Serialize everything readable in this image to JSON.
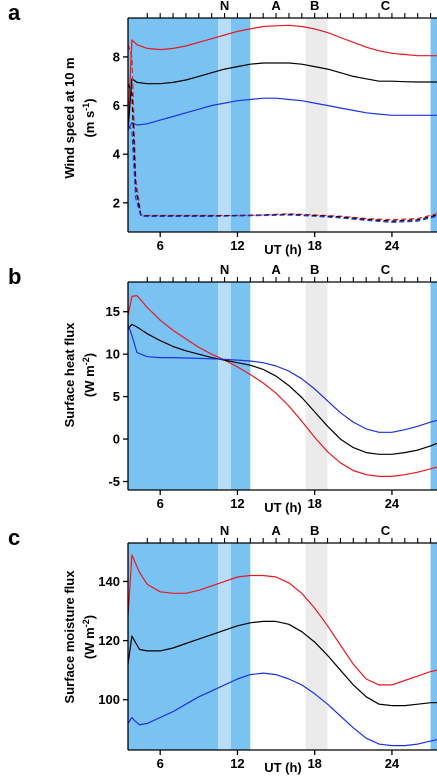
{
  "chart_data": [
    {
      "type": "line",
      "panel_label": "a",
      "ylabel": "Wind speed at 10 m",
      "yunit_prefix": "(m s",
      "yunit_exp": "-1",
      "yunit_suffix": ")",
      "xlabel": "UT (h)",
      "xlim": [
        3.5,
        27.5
      ],
      "ylim": [
        0.8,
        9.6
      ],
      "xticks": [
        6,
        12,
        18,
        24
      ],
      "yticks": [
        2,
        4,
        6,
        8
      ],
      "shading": [
        {
          "x0": 3.5,
          "x1": 10.5,
          "color": "#79c2f2"
        },
        {
          "x0": 10.5,
          "x1": 11.5,
          "color": "#b7ddf8"
        },
        {
          "x0": 11.5,
          "x1": 13.0,
          "color": "#79c2f2"
        },
        {
          "x0": 17.3,
          "x1": 19.0,
          "color": "#ebebeb"
        },
        {
          "x0": 27.0,
          "x1": 27.5,
          "color": "#79c2f2"
        }
      ],
      "event_marks": [
        {
          "label": "N",
          "x": 11.0
        },
        {
          "label": "A",
          "x": 15.0
        },
        {
          "label": "B",
          "x": 18.0
        },
        {
          "label": "C",
          "x": 23.5
        }
      ],
      "top_ticks": [
        5,
        6,
        7,
        8,
        9,
        10,
        11,
        12,
        13,
        14,
        15,
        16,
        17,
        18,
        19,
        20,
        21,
        22,
        23,
        24,
        25,
        26,
        27
      ],
      "series": [
        {
          "color": "#e8191f",
          "dash": "",
          "x": [
            3.5,
            3.8,
            4.2,
            5,
            6,
            7,
            8,
            9,
            10,
            11,
            12,
            13,
            14,
            15,
            16,
            17,
            18,
            19,
            20,
            21,
            22,
            23,
            24,
            25,
            26,
            27,
            27.5
          ],
          "y": [
            5.2,
            8.7,
            8.5,
            8.35,
            8.3,
            8.35,
            8.45,
            8.6,
            8.75,
            8.9,
            9.05,
            9.15,
            9.25,
            9.28,
            9.3,
            9.25,
            9.15,
            9.0,
            8.8,
            8.6,
            8.4,
            8.25,
            8.15,
            8.1,
            8.05,
            8.05,
            8.05
          ]
        },
        {
          "color": "#000000",
          "dash": "",
          "x": [
            3.5,
            3.8,
            4.2,
            5,
            6,
            7,
            8,
            9,
            10,
            11,
            12,
            13,
            14,
            15,
            16,
            17,
            18,
            19,
            20,
            21,
            22,
            23,
            24,
            25,
            26,
            27,
            27.5
          ],
          "y": [
            5.0,
            7.1,
            6.95,
            6.9,
            6.9,
            6.95,
            7.05,
            7.2,
            7.35,
            7.5,
            7.6,
            7.7,
            7.75,
            7.75,
            7.75,
            7.7,
            7.6,
            7.5,
            7.35,
            7.2,
            7.1,
            7.0,
            7.0,
            6.98,
            6.97,
            6.97,
            6.97
          ]
        },
        {
          "color": "#1c33e0",
          "dash": "",
          "x": [
            3.5,
            3.8,
            4.2,
            5,
            6,
            7,
            8,
            9,
            10,
            11,
            12,
            13,
            14,
            15,
            16,
            17,
            18,
            19,
            20,
            21,
            22,
            23,
            24,
            25,
            26,
            27,
            27.5
          ],
          "y": [
            5.0,
            5.3,
            5.2,
            5.25,
            5.4,
            5.55,
            5.7,
            5.85,
            6.0,
            6.1,
            6.2,
            6.25,
            6.3,
            6.3,
            6.25,
            6.2,
            6.1,
            6.0,
            5.9,
            5.8,
            5.7,
            5.65,
            5.6,
            5.6,
            5.6,
            5.6,
            5.6
          ]
        },
        {
          "color": "#e8191f",
          "dash": "5,3",
          "x": [
            3.5,
            3.8,
            4.1,
            4.5,
            5,
            6,
            8,
            10,
            12,
            14,
            16,
            18,
            20,
            22,
            24,
            26,
            27.5
          ],
          "y": [
            8.5,
            8.0,
            3.0,
            1.5,
            1.48,
            1.48,
            1.48,
            1.48,
            1.48,
            1.5,
            1.55,
            1.5,
            1.45,
            1.35,
            1.3,
            1.35,
            1.55
          ]
        },
        {
          "color": "#000000",
          "dash": "5,3",
          "x": [
            3.5,
            3.8,
            4.1,
            4.5,
            5,
            6,
            8,
            10,
            12,
            14,
            16,
            18,
            20,
            22,
            24,
            26,
            27.5
          ],
          "y": [
            6.9,
            6.5,
            2.6,
            1.48,
            1.46,
            1.46,
            1.46,
            1.46,
            1.48,
            1.5,
            1.52,
            1.48,
            1.42,
            1.32,
            1.25,
            1.3,
            1.5
          ]
        },
        {
          "color": "#1c33e0",
          "dash": "5,3",
          "x": [
            3.5,
            3.8,
            4.1,
            4.5,
            5,
            6,
            8,
            10,
            12,
            14,
            16,
            18,
            20,
            22,
            24,
            26,
            27.5
          ],
          "y": [
            5.2,
            5.0,
            2.2,
            1.45,
            1.44,
            1.44,
            1.44,
            1.44,
            1.46,
            1.48,
            1.5,
            1.45,
            1.38,
            1.28,
            1.2,
            1.25,
            1.45
          ]
        }
      ]
    },
    {
      "type": "line",
      "panel_label": "b",
      "ylabel": "Surface heat flux",
      "yunit_prefix": "(W m",
      "yunit_exp": "-2",
      "yunit_suffix": ")",
      "xlabel": "UT (h)",
      "xlim": [
        3.5,
        27.5
      ],
      "ylim": [
        -6,
        18.5
      ],
      "xticks": [
        6,
        12,
        18,
        24
      ],
      "yticks": [
        -5,
        0,
        5,
        10,
        15
      ],
      "shading": [
        {
          "x0": 3.5,
          "x1": 10.5,
          "color": "#79c2f2"
        },
        {
          "x0": 10.5,
          "x1": 11.5,
          "color": "#b7ddf8"
        },
        {
          "x0": 11.5,
          "x1": 13.0,
          "color": "#79c2f2"
        },
        {
          "x0": 17.3,
          "x1": 19.0,
          "color": "#ebebeb"
        },
        {
          "x0": 27.0,
          "x1": 27.5,
          "color": "#79c2f2"
        }
      ],
      "event_marks": [
        {
          "label": "N",
          "x": 11.0
        },
        {
          "label": "A",
          "x": 15.0
        },
        {
          "label": "B",
          "x": 18.0
        },
        {
          "label": "C",
          "x": 23.5
        }
      ],
      "top_ticks": [
        5,
        6,
        7,
        8,
        9,
        10,
        11,
        12,
        13,
        14,
        15,
        16,
        17,
        18,
        19,
        20,
        21,
        22,
        23,
        24,
        25,
        26,
        27
      ],
      "series": [
        {
          "color": "#e8191f",
          "dash": "",
          "x": [
            3.5,
            3.8,
            4.2,
            5,
            6,
            7,
            8,
            9,
            10,
            11,
            12,
            13,
            14,
            15,
            16,
            17,
            18,
            19,
            20,
            21,
            22,
            23,
            24,
            25,
            26,
            27,
            27.5
          ],
          "y": [
            14.5,
            16.8,
            16.9,
            15.5,
            14.0,
            12.8,
            11.8,
            10.8,
            10.0,
            9.3,
            8.5,
            7.6,
            6.6,
            5.4,
            3.9,
            2.1,
            0.2,
            -1.5,
            -2.8,
            -3.7,
            -4.2,
            -4.4,
            -4.4,
            -4.2,
            -3.9,
            -3.5,
            -3.3
          ]
        },
        {
          "color": "#000000",
          "dash": "",
          "x": [
            3.5,
            3.8,
            4.2,
            5,
            6,
            7,
            8,
            9,
            10,
            11,
            12,
            13,
            14,
            15,
            16,
            17,
            18,
            19,
            20,
            21,
            22,
            23,
            24,
            25,
            26,
            27,
            27.5
          ],
          "y": [
            13.0,
            13.5,
            13.2,
            12.4,
            11.6,
            10.9,
            10.4,
            10.0,
            9.6,
            9.3,
            9.0,
            8.7,
            8.2,
            7.4,
            6.3,
            4.9,
            3.2,
            1.5,
            0.0,
            -1.0,
            -1.6,
            -1.8,
            -1.8,
            -1.6,
            -1.3,
            -0.8,
            -0.5
          ]
        },
        {
          "color": "#1c33e0",
          "dash": "",
          "x": [
            3.5,
            3.8,
            4.2,
            5,
            6,
            7,
            8,
            9,
            10,
            11,
            12,
            13,
            14,
            15,
            16,
            17,
            18,
            19,
            20,
            21,
            22,
            23,
            24,
            25,
            26,
            27,
            27.5
          ],
          "y": [
            13.5,
            12.2,
            10.2,
            9.7,
            9.6,
            9.6,
            9.55,
            9.5,
            9.45,
            9.4,
            9.3,
            9.2,
            9.0,
            8.6,
            8.0,
            7.1,
            5.9,
            4.5,
            3.1,
            2.0,
            1.2,
            0.8,
            0.8,
            1.1,
            1.5,
            2.0,
            2.2
          ]
        }
      ]
    },
    {
      "type": "line",
      "panel_label": "c",
      "ylabel": "Surface moisture flux",
      "yunit_prefix": "(W m",
      "yunit_exp": "-2",
      "yunit_suffix": ")",
      "xlabel": "UT (h)",
      "xlim": [
        3.5,
        27.5
      ],
      "ylim": [
        83,
        153
      ],
      "xticks": [
        6,
        12,
        18,
        24
      ],
      "yticks": [
        100,
        120,
        140
      ],
      "shading": [
        {
          "x0": 3.5,
          "x1": 10.5,
          "color": "#79c2f2"
        },
        {
          "x0": 10.5,
          "x1": 11.5,
          "color": "#b7ddf8"
        },
        {
          "x0": 11.5,
          "x1": 13.0,
          "color": "#79c2f2"
        },
        {
          "x0": 17.3,
          "x1": 19.0,
          "color": "#ebebeb"
        },
        {
          "x0": 27.0,
          "x1": 27.5,
          "color": "#79c2f2"
        }
      ],
      "event_marks": [
        {
          "label": "N",
          "x": 11.0
        },
        {
          "label": "A",
          "x": 15.0
        },
        {
          "label": "B",
          "x": 18.0
        },
        {
          "label": "C",
          "x": 23.5
        }
      ],
      "top_ticks": [
        5,
        6,
        7,
        8,
        9,
        10,
        11,
        12,
        13,
        14,
        15,
        16,
        17,
        18,
        19,
        20,
        21,
        22,
        23,
        24,
        25,
        26,
        27
      ],
      "series": [
        {
          "color": "#e8191f",
          "dash": "",
          "x": [
            3.5,
            3.8,
            4.0,
            4.4,
            5,
            6,
            7,
            8,
            9,
            10,
            11,
            12,
            13,
            14,
            15,
            16,
            17,
            18,
            19,
            20,
            21,
            22,
            23,
            24,
            25,
            26,
            27,
            27.5
          ],
          "y": [
            128,
            149,
            147,
            143,
            139,
            136.5,
            136,
            136,
            137,
            138.5,
            140,
            141.5,
            142,
            142,
            141.5,
            139.5,
            136,
            131,
            125,
            118.5,
            112,
            107,
            105,
            105,
            106.5,
            108,
            109.5,
            110
          ]
        },
        {
          "color": "#000000",
          "dash": "",
          "x": [
            3.5,
            3.8,
            4.0,
            4.4,
            5,
            6,
            7,
            8,
            9,
            10,
            11,
            12,
            13,
            14,
            15,
            16,
            17,
            18,
            19,
            20,
            21,
            22,
            23,
            24,
            25,
            26,
            27,
            27.5
          ],
          "y": [
            112,
            121.5,
            120,
            117,
            116.5,
            116.5,
            117.5,
            119,
            120.5,
            122,
            123.5,
            125,
            126,
            126.5,
            126.5,
            125.5,
            123,
            119.5,
            115,
            110,
            105,
            101,
            98.5,
            98,
            98,
            98.5,
            99,
            99
          ]
        },
        {
          "color": "#1c33e0",
          "dash": "",
          "x": [
            3.5,
            3.8,
            4.0,
            4.4,
            5,
            6,
            7,
            8,
            9,
            10,
            11,
            12,
            13,
            14,
            15,
            16,
            17,
            18,
            19,
            20,
            21,
            22,
            23,
            24,
            25,
            26,
            27,
            27.5
          ],
          "y": [
            92,
            94,
            93,
            91.5,
            92,
            94,
            96,
            98.5,
            101,
            103,
            105,
            107,
            108.5,
            109,
            108.5,
            107,
            105,
            102,
            98.5,
            94.5,
            90.5,
            87,
            85,
            84.5,
            84.5,
            85,
            86,
            86.5
          ]
        }
      ]
    }
  ]
}
